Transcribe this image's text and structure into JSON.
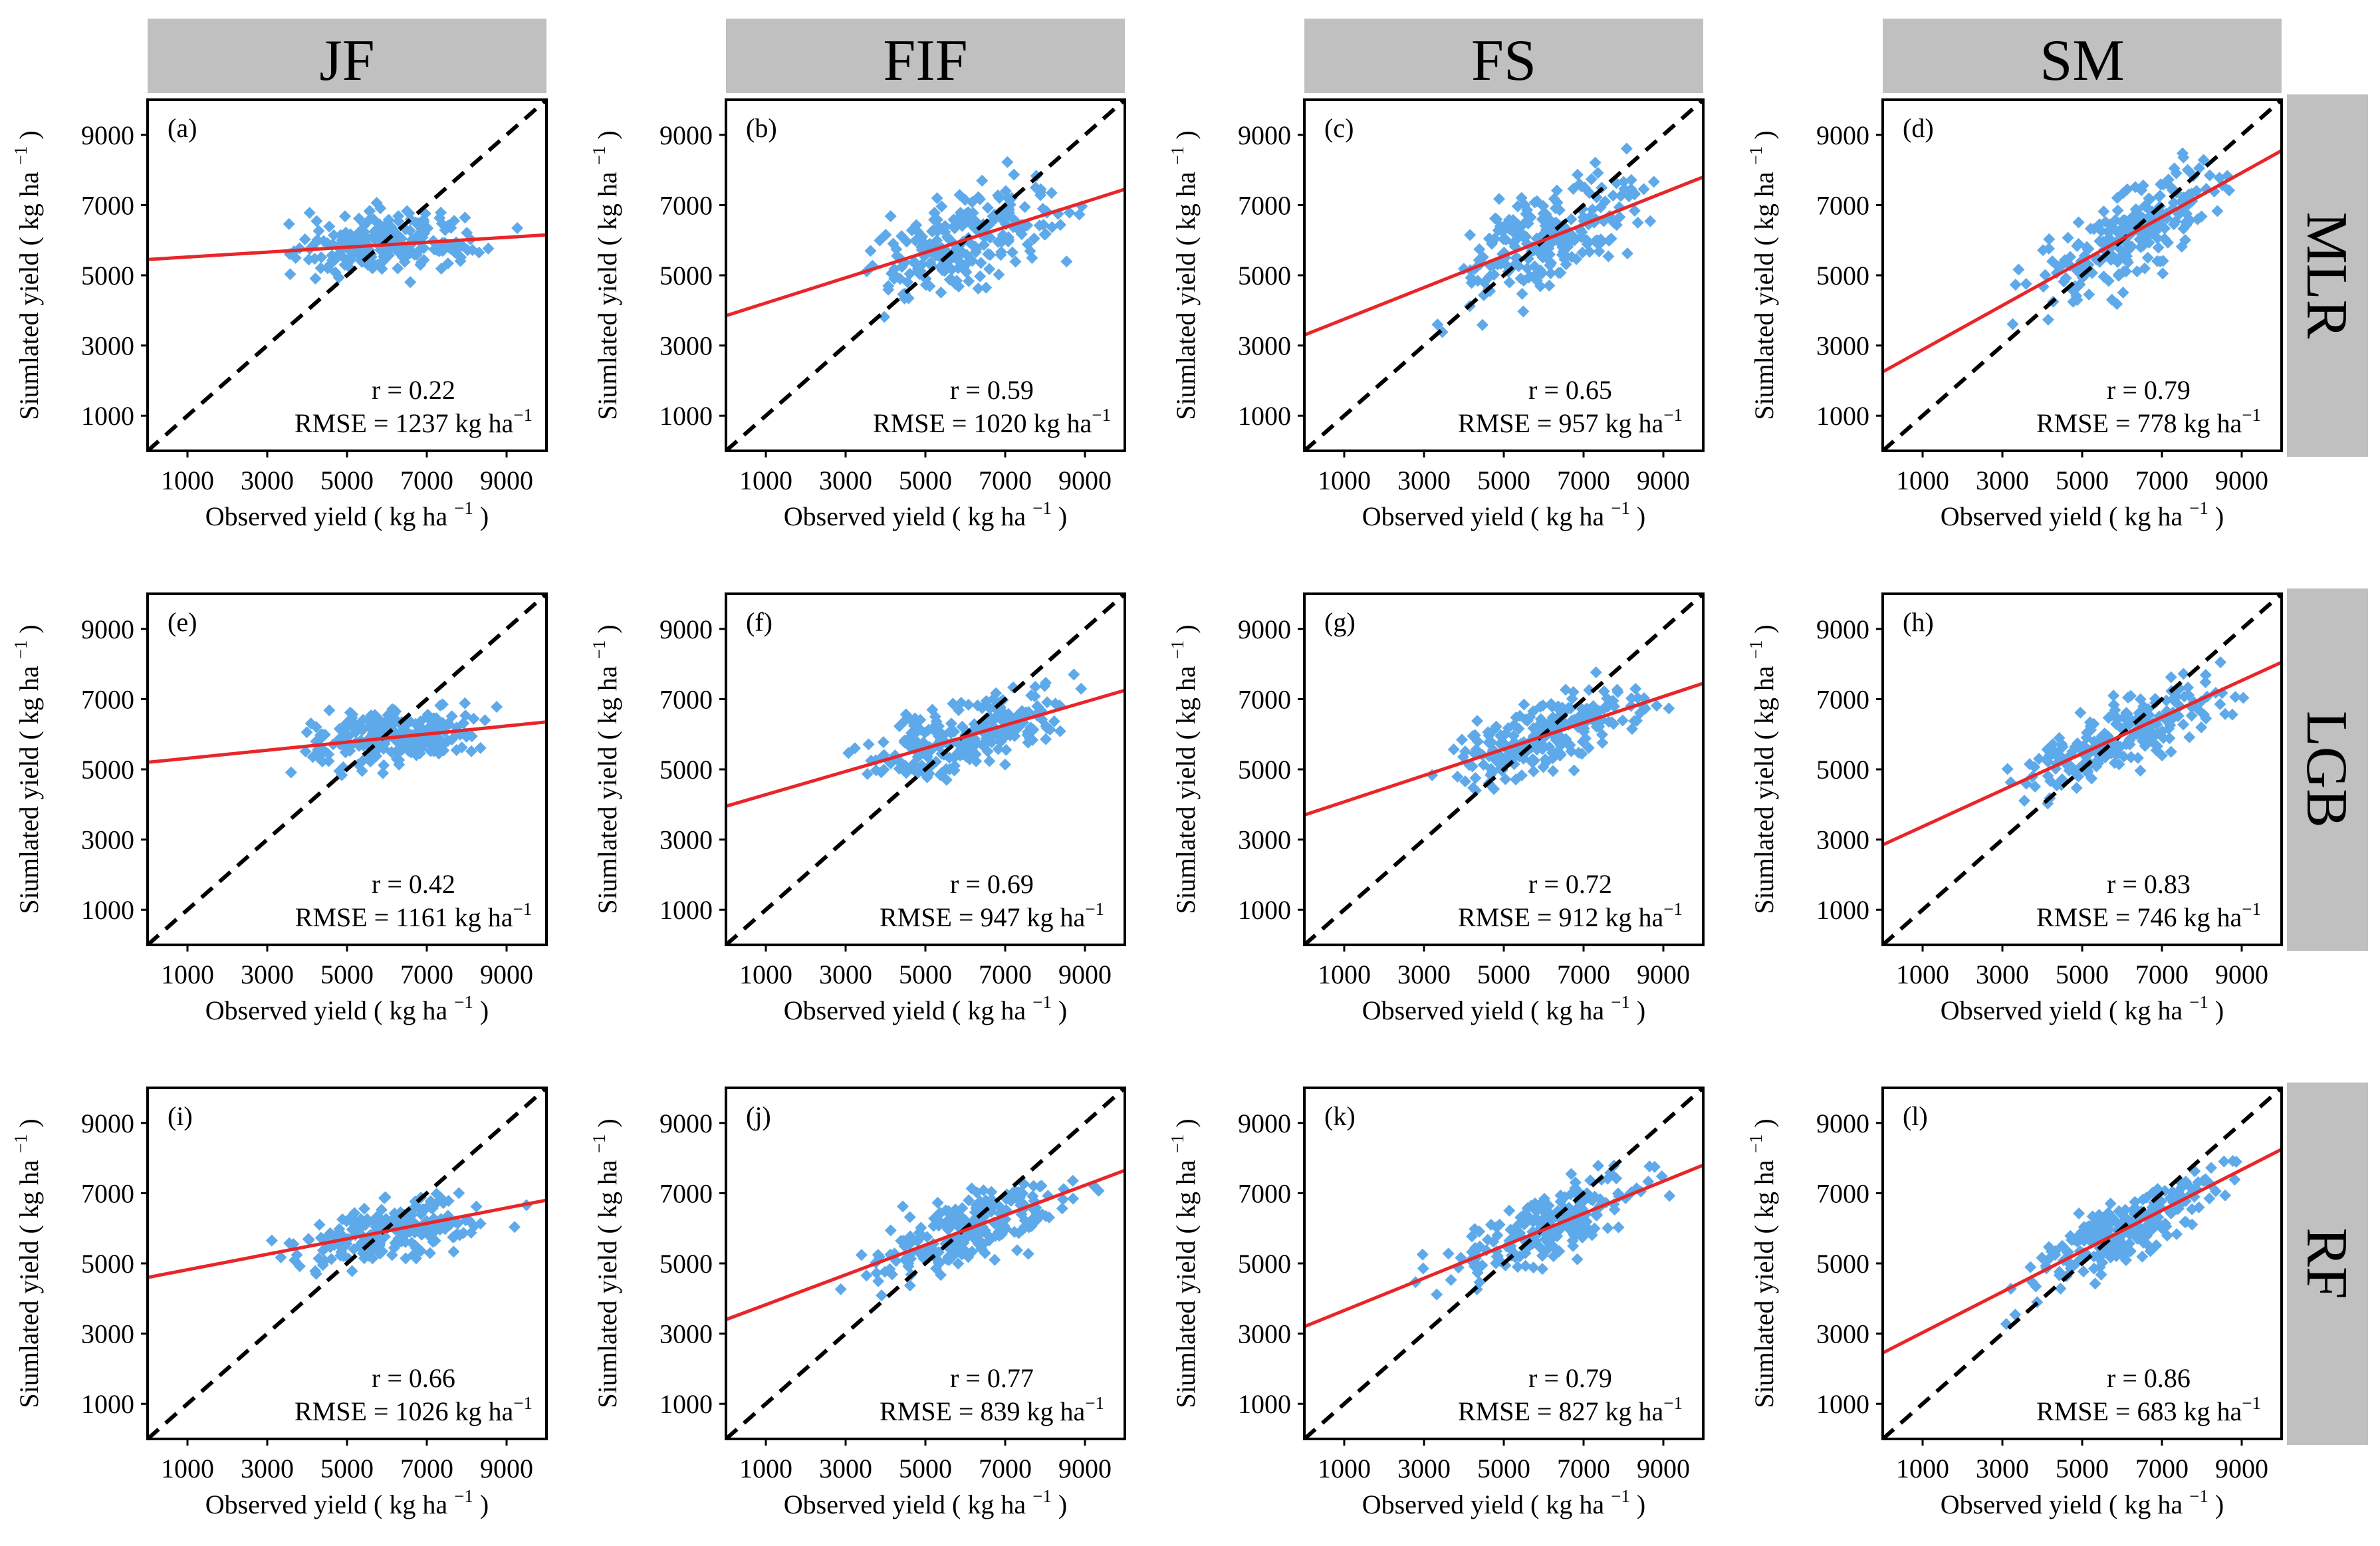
{
  "figure": {
    "column_headers": [
      "JF",
      "FIF",
      "FS",
      "SM"
    ],
    "row_headers": [
      "MLR",
      "LGB",
      "RF"
    ],
    "xlabel": "Observed yield ( kg ha",
    "ylabel": "Siumlated yield ( kg ha",
    "unit_exponent": "−1",
    "unit_close": " )",
    "r_prefix": "r = ",
    "rmse_prefix": "RMSE = ",
    "rmse_unit": " kg ha",
    "colors": {
      "points": "#5DA9E9",
      "fit_line": "#E8262A",
      "one_to_one": "#000000",
      "strip": "#C0C0C0"
    }
  },
  "chart_data": [
    {
      "type": "scatter",
      "panel": "(a)",
      "column": "JF",
      "row": "MLR",
      "r": "0.22",
      "rmse": "1237",
      "fit_y_at_xmin": 5450,
      "fit_y_at_xmax": 6150,
      "spread": 420,
      "x_range": [
        2000,
        9800
      ],
      "xlim": [
        0,
        10000
      ],
      "ylim": [
        0,
        10000
      ],
      "xticks": [
        "1000",
        "3000",
        "5000",
        "7000",
        "9000"
      ],
      "yticks": [
        "1000",
        "3000",
        "5000",
        "7000",
        "9000"
      ]
    },
    {
      "type": "scatter",
      "panel": "(b)",
      "column": "FIF",
      "row": "MLR",
      "r": "0.59",
      "rmse": "1020",
      "fit_y_at_xmin": 3850,
      "fit_y_at_xmax": 7450,
      "spread": 650,
      "x_range": [
        1500,
        9800
      ],
      "xlim": [
        0,
        10000
      ],
      "ylim": [
        0,
        10000
      ],
      "xticks": [
        "1000",
        "3000",
        "5000",
        "7000",
        "9000"
      ],
      "yticks": [
        "1000",
        "3000",
        "5000",
        "7000",
        "9000"
      ]
    },
    {
      "type": "scatter",
      "panel": "(c)",
      "column": "FS",
      "row": "MLR",
      "r": "0.65",
      "rmse": "957",
      "fit_y_at_xmin": 3300,
      "fit_y_at_xmax": 7800,
      "spread": 700,
      "x_range": [
        1500,
        9800
      ],
      "xlim": [
        0,
        10000
      ],
      "ylim": [
        0,
        10000
      ],
      "xticks": [
        "1000",
        "3000",
        "5000",
        "7000",
        "9000"
      ],
      "yticks": [
        "1000",
        "3000",
        "5000",
        "7000",
        "9000"
      ]
    },
    {
      "type": "scatter",
      "panel": "(d)",
      "column": "SM",
      "row": "MLR",
      "r": "0.79",
      "rmse": "778",
      "fit_y_at_xmin": 2250,
      "fit_y_at_xmax": 8550,
      "spread": 600,
      "x_range": [
        1500,
        9800
      ],
      "xlim": [
        0,
        10000
      ],
      "ylim": [
        0,
        10000
      ],
      "xticks": [
        "1000",
        "3000",
        "5000",
        "7000",
        "9000"
      ],
      "yticks": [
        "1000",
        "3000",
        "5000",
        "7000",
        "9000"
      ]
    },
    {
      "type": "scatter",
      "panel": "(e)",
      "column": "JF",
      "row": "LGB",
      "r": "0.42",
      "rmse": "1161",
      "fit_y_at_xmin": 5200,
      "fit_y_at_xmax": 6350,
      "spread": 380,
      "x_range": [
        1700,
        9800
      ],
      "xlim": [
        0,
        10000
      ],
      "ylim": [
        0,
        10000
      ],
      "xticks": [
        "1000",
        "3000",
        "5000",
        "7000",
        "9000"
      ],
      "yticks": [
        "1000",
        "3000",
        "5000",
        "7000",
        "9000"
      ]
    },
    {
      "type": "scatter",
      "panel": "(f)",
      "column": "FIF",
      "row": "LGB",
      "r": "0.69",
      "rmse": "947",
      "fit_y_at_xmin": 3950,
      "fit_y_at_xmax": 7250,
      "spread": 500,
      "x_range": [
        1500,
        9800
      ],
      "xlim": [
        0,
        10000
      ],
      "ylim": [
        0,
        10000
      ],
      "xticks": [
        "1000",
        "3000",
        "5000",
        "7000",
        "9000"
      ],
      "yticks": [
        "1000",
        "3000",
        "5000",
        "7000",
        "9000"
      ]
    },
    {
      "type": "scatter",
      "panel": "(g)",
      "column": "FS",
      "row": "LGB",
      "r": "0.72",
      "rmse": "912",
      "fit_y_at_xmin": 3700,
      "fit_y_at_xmax": 7450,
      "spread": 500,
      "x_range": [
        1500,
        9800
      ],
      "xlim": [
        0,
        10000
      ],
      "ylim": [
        0,
        10000
      ],
      "xticks": [
        "1000",
        "3000",
        "5000",
        "7000",
        "9000"
      ],
      "yticks": [
        "1000",
        "3000",
        "5000",
        "7000",
        "9000"
      ]
    },
    {
      "type": "scatter",
      "panel": "(h)",
      "column": "SM",
      "row": "LGB",
      "r": "0.83",
      "rmse": "746",
      "fit_y_at_xmin": 2850,
      "fit_y_at_xmax": 8050,
      "spread": 480,
      "x_range": [
        1500,
        9800
      ],
      "xlim": [
        0,
        10000
      ],
      "ylim": [
        0,
        10000
      ],
      "xticks": [
        "1000",
        "3000",
        "5000",
        "7000",
        "9000"
      ],
      "yticks": [
        "1000",
        "3000",
        "5000",
        "7000",
        "9000"
      ]
    },
    {
      "type": "scatter",
      "panel": "(i)",
      "column": "JF",
      "row": "RF",
      "r": "0.66",
      "rmse": "1026",
      "fit_y_at_xmin": 4600,
      "fit_y_at_xmax": 6800,
      "spread": 400,
      "x_range": [
        1700,
        9800
      ],
      "xlim": [
        0,
        10000
      ],
      "ylim": [
        0,
        10000
      ],
      "xticks": [
        "1000",
        "3000",
        "5000",
        "7000",
        "9000"
      ],
      "yticks": [
        "1000",
        "3000",
        "5000",
        "7000",
        "9000"
      ]
    },
    {
      "type": "scatter",
      "panel": "(j)",
      "column": "FIF",
      "row": "RF",
      "r": "0.77",
      "rmse": "839",
      "fit_y_at_xmin": 3400,
      "fit_y_at_xmax": 7650,
      "spread": 480,
      "x_range": [
        1500,
        9800
      ],
      "xlim": [
        0,
        10000
      ],
      "ylim": [
        0,
        10000
      ],
      "xticks": [
        "1000",
        "3000",
        "5000",
        "7000",
        "9000"
      ],
      "yticks": [
        "1000",
        "3000",
        "5000",
        "7000",
        "9000"
      ]
    },
    {
      "type": "scatter",
      "panel": "(k)",
      "column": "FS",
      "row": "RF",
      "r": "0.79",
      "rmse": "827",
      "fit_y_at_xmin": 3200,
      "fit_y_at_xmax": 7800,
      "spread": 480,
      "x_range": [
        1500,
        9800
      ],
      "xlim": [
        0,
        10000
      ],
      "ylim": [
        0,
        10000
      ],
      "xticks": [
        "1000",
        "3000",
        "5000",
        "7000",
        "9000"
      ],
      "yticks": [
        "1000",
        "3000",
        "5000",
        "7000",
        "9000"
      ]
    },
    {
      "type": "scatter",
      "panel": "(l)",
      "column": "SM",
      "row": "RF",
      "r": "0.86",
      "rmse": "683",
      "fit_y_at_xmin": 2450,
      "fit_y_at_xmax": 8250,
      "spread": 430,
      "x_range": [
        1500,
        9800
      ],
      "xlim": [
        0,
        10000
      ],
      "ylim": [
        0,
        10000
      ],
      "xticks": [
        "1000",
        "3000",
        "5000",
        "7000",
        "9000"
      ],
      "yticks": [
        "1000",
        "3000",
        "5000",
        "7000",
        "9000"
      ]
    }
  ]
}
